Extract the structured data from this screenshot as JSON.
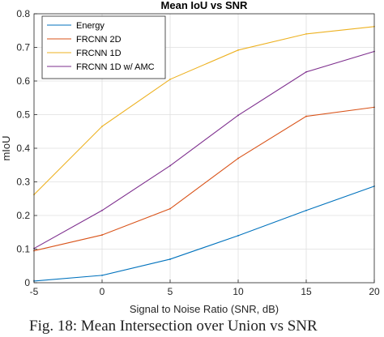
{
  "chart_data": {
    "type": "line",
    "title": "Mean IoU vs SNR",
    "xlabel": "Signal to Noise Ratio (SNR, dB)",
    "ylabel": "mIoU",
    "x": [
      -5,
      0,
      5,
      10,
      15,
      20
    ],
    "xlim": [
      -5,
      20
    ],
    "ylim": [
      0,
      0.8
    ],
    "x_ticks": [
      "-5",
      "0",
      "5",
      "10",
      "15",
      "20"
    ],
    "y_ticks": [
      "0",
      "0.1",
      "0.2",
      "0.3",
      "0.4",
      "0.5",
      "0.6",
      "0.7",
      "0.8"
    ],
    "grid": true,
    "legend_position": "top-left",
    "series": [
      {
        "name": "Energy",
        "color": "#0072BD",
        "values": [
          0.005,
          0.022,
          0.07,
          0.14,
          0.215,
          0.287
        ]
      },
      {
        "name": "FRCNN 2D",
        "color": "#D95319",
        "values": [
          0.095,
          0.142,
          0.22,
          0.37,
          0.495,
          0.522
        ]
      },
      {
        "name": "FRCNN 1D",
        "color": "#EDB120",
        "values": [
          0.262,
          0.465,
          0.605,
          0.692,
          0.74,
          0.762
        ]
      },
      {
        "name": "FRCNN 1D w/ AMC",
        "color": "#7E2F8E",
        "values": [
          0.102,
          0.215,
          0.348,
          0.498,
          0.627,
          0.688
        ]
      }
    ]
  },
  "caption": "Fig. 18: Mean Intersection over Union vs SNR"
}
